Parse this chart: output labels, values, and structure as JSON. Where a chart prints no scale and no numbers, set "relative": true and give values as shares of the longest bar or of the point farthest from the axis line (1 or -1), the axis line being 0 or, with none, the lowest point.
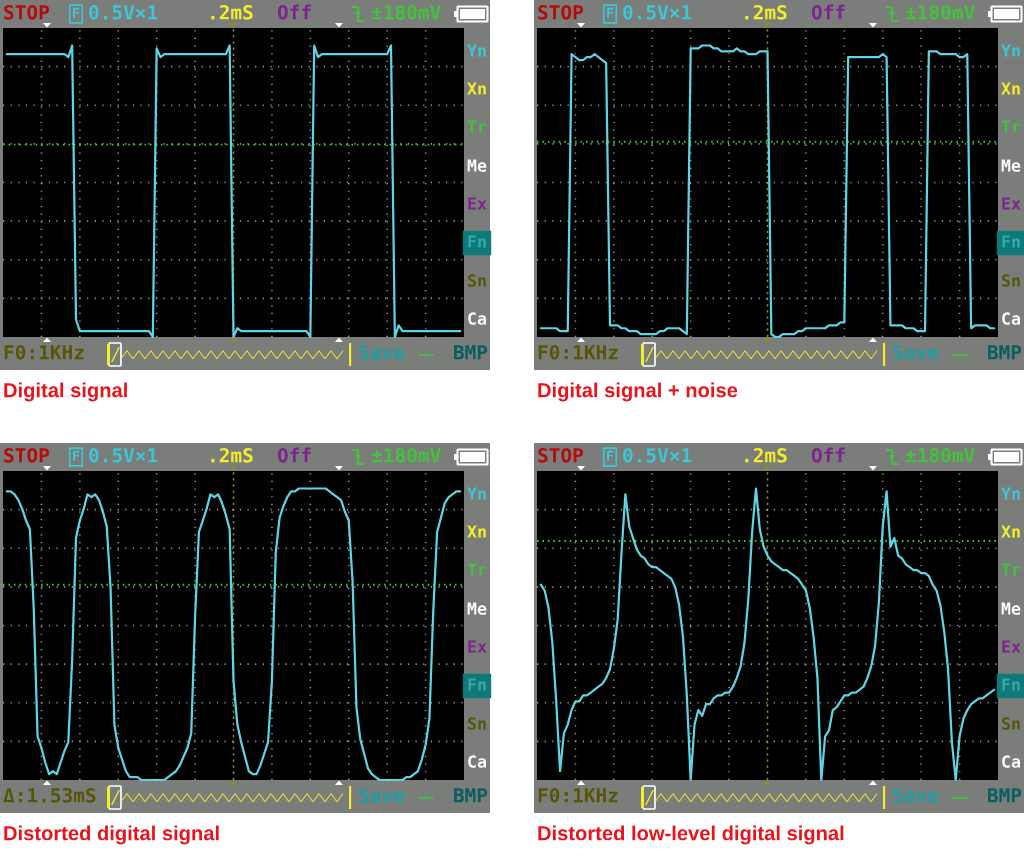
{
  "chart_data": [
    {
      "type": "line",
      "title": "Digital signal",
      "relative": true,
      "grid": true,
      "categories": [
        null,
        null,
        null,
        null,
        null,
        null,
        null,
        null,
        null,
        null,
        null,
        null,
        null,
        null,
        null,
        null,
        null,
        null,
        null,
        null,
        null,
        null,
        null,
        null,
        null,
        null,
        null,
        null,
        null,
        null,
        null,
        null,
        null,
        null,
        null,
        null,
        null,
        null,
        null,
        null,
        null,
        null,
        null,
        null,
        null,
        null,
        null,
        null,
        null,
        null,
        null,
        null,
        null,
        null,
        null,
        null,
        null,
        null,
        null,
        null,
        null,
        null,
        null,
        null,
        null,
        null,
        null,
        null,
        null,
        null,
        null,
        null,
        null,
        null,
        null,
        null,
        null,
        null,
        null,
        null,
        null,
        null,
        null,
        null,
        null,
        null,
        null,
        null,
        null,
        null,
        null,
        null,
        null,
        null,
        null,
        null,
        null,
        null,
        null,
        null,
        null,
        null,
        null,
        null,
        null,
        null,
        null,
        null,
        null,
        null,
        null,
        null,
        null,
        null,
        null,
        null,
        null,
        null,
        null,
        null,
        null
      ],
      "series": [
        {
          "color": "#5fd4e4",
          "values": [
            null,
            0.97,
            0.97,
            0.97,
            0.97,
            0.97,
            0.97,
            0.97,
            0.97,
            0.97,
            0.97,
            0.97,
            0.97,
            0.97,
            0.97,
            0.97,
            0.97,
            0.96,
            1.0,
            0.06,
            0.02,
            0.02,
            0.02,
            0.02,
            0.02,
            0.02,
            0.02,
            0.02,
            0.02,
            0.02,
            0.02,
            0.02,
            0.02,
            0.02,
            0.02,
            0.02,
            0.02,
            0.02,
            0.02,
            0.0,
            0.99,
            0.96,
            0.97,
            0.97,
            0.97,
            0.97,
            0.97,
            0.97,
            0.97,
            0.97,
            0.97,
            0.97,
            0.97,
            0.97,
            0.97,
            0.97,
            0.97,
            0.97,
            0.97,
            1.0,
            0.0,
            0.03,
            0.02,
            0.02,
            0.02,
            0.02,
            0.02,
            0.02,
            0.02,
            0.02,
            0.02,
            0.02,
            0.02,
            0.02,
            0.02,
            0.02,
            0.02,
            0.02,
            0.02,
            0.02,
            0.0,
            1.0,
            0.96,
            0.97,
            0.97,
            0.97,
            0.97,
            0.97,
            0.97,
            0.97,
            0.97,
            0.97,
            0.97,
            0.97,
            0.97,
            0.97,
            0.97,
            0.97,
            0.97,
            0.97,
            0.97,
            1.0,
            0.0,
            0.04,
            0.02,
            0.02,
            0.02,
            0.02,
            0.02,
            0.02,
            0.02,
            0.02,
            0.02,
            0.02,
            0.02,
            0.02,
            0.02,
            0.02,
            0.02,
            0.02,
            null
          ]
        }
      ],
      "ref_lines": [
        {
          "axis": "y",
          "value": 0.66,
          "color": "#2fd12f",
          "line_style": "dotted"
        }
      ],
      "annotations": [
        "STOP",
        "F",
        "0.5V×1",
        ".2mS",
        "Off",
        "±180mV",
        "Yn",
        "Xn",
        "Tr",
        "Me",
        "Ex",
        "Fn",
        "Sn",
        "Ca",
        "F0:1KHz",
        "Save",
        "BMP"
      ]
    },
    {
      "type": "line",
      "title": "Digital signal + noise",
      "relative": true,
      "grid": true,
      "categories": [
        null,
        null,
        null,
        null,
        null,
        null,
        null,
        null,
        null,
        null,
        null,
        null,
        null,
        null,
        null,
        null,
        null,
        null,
        null,
        null,
        null,
        null,
        null,
        null,
        null,
        null,
        null,
        null,
        null,
        null,
        null,
        null,
        null,
        null,
        null,
        null,
        null,
        null,
        null,
        null,
        null,
        null,
        null,
        null,
        null,
        null,
        null,
        null,
        null,
        null,
        null,
        null,
        null,
        null,
        null,
        null,
        null,
        null,
        null,
        null,
        null,
        null,
        null,
        null,
        null,
        null,
        null,
        null,
        null,
        null,
        null,
        null,
        null,
        null,
        null,
        null,
        null,
        null,
        null,
        null,
        null,
        null,
        null,
        null,
        null,
        null,
        null,
        null,
        null,
        null,
        null,
        null,
        null,
        null,
        null,
        null,
        null,
        null,
        null,
        null,
        null,
        null,
        null,
        null,
        null,
        null,
        null,
        null,
        null,
        null,
        null,
        null,
        null,
        null,
        null,
        null,
        null,
        null,
        null,
        null,
        null
      ],
      "series": [
        {
          "color": "#5fd4e4",
          "values": [
            null,
            0.03,
            0.03,
            0.03,
            0.03,
            0.03,
            0.02,
            0.02,
            0.02,
            0.97,
            0.96,
            0.95,
            0.95,
            0.96,
            0.96,
            0.97,
            0.96,
            0.95,
            0.94,
            0.04,
            0.04,
            0.04,
            0.03,
            0.03,
            0.02,
            0.02,
            0.02,
            0.01,
            0.01,
            0.01,
            0.01,
            0.01,
            0.02,
            0.02,
            0.03,
            0.03,
            0.03,
            0.03,
            0.02,
            0.01,
            0.99,
            0.99,
            0.99,
            1.0,
            1.0,
            1.0,
            0.99,
            0.99,
            0.98,
            0.98,
            0.98,
            0.98,
            0.99,
            0.98,
            0.98,
            0.97,
            0.97,
            0.97,
            0.98,
            0.98,
            0.98,
            0.01,
            0.0,
            0.0,
            0.01,
            0.01,
            0.01,
            0.01,
            0.02,
            0.02,
            0.03,
            0.03,
            0.03,
            0.03,
            0.03,
            0.03,
            0.04,
            0.04,
            0.04,
            0.05,
            0.05,
            0.96,
            0.96,
            0.96,
            0.96,
            0.96,
            0.96,
            0.96,
            0.96,
            0.96,
            0.97,
            0.96,
            0.04,
            0.04,
            0.04,
            0.04,
            0.03,
            0.03,
            0.03,
            0.02,
            0.02,
            0.02,
            0.98,
            0.98,
            0.98,
            0.97,
            0.97,
            0.97,
            0.97,
            0.97,
            0.96,
            0.96,
            0.97,
            0.03,
            0.04,
            0.04,
            0.04,
            0.04,
            0.03,
            0.03,
            null
          ]
        }
      ],
      "ref_lines": [
        {
          "axis": "y",
          "value": 0.67,
          "color": "#2fd12f",
          "line_style": "dotted"
        }
      ],
      "annotations": [
        "STOP",
        "F",
        "0.5V×1",
        ".2mS",
        "Off",
        "±180mV",
        "Yn",
        "Xn",
        "Tr",
        "Me",
        "Ex",
        "Fn",
        "Sn",
        "Ca",
        "F0:1KHz",
        "Save",
        "BMP"
      ]
    },
    {
      "type": "line",
      "title": "Distorted digital signal",
      "relative": true,
      "grid": true,
      "categories": [
        null,
        null,
        null,
        null,
        null,
        null,
        null,
        null,
        null,
        null,
        null,
        null,
        null,
        null,
        null,
        null,
        null,
        null,
        null,
        null,
        null,
        null,
        null,
        null,
        null,
        null,
        null,
        null,
        null,
        null,
        null,
        null,
        null,
        null,
        null,
        null,
        null,
        null,
        null,
        null,
        null,
        null,
        null,
        null,
        null,
        null,
        null,
        null,
        null,
        null,
        null,
        null,
        null,
        null,
        null,
        null,
        null,
        null,
        null,
        null,
        null,
        null,
        null,
        null,
        null,
        null,
        null,
        null,
        null,
        null,
        null,
        null,
        null,
        null,
        null,
        null,
        null,
        null,
        null,
        null,
        null,
        null,
        null,
        null,
        null,
        null,
        null,
        null,
        null,
        null,
        null,
        null,
        null,
        null,
        null,
        null,
        null,
        null,
        null,
        null,
        null,
        null,
        null,
        null,
        null,
        null,
        null,
        null,
        null,
        null,
        null,
        null,
        null,
        null,
        null,
        null,
        null,
        null,
        null,
        null,
        null
      ],
      "series": [
        {
          "color": "#5fd4e4",
          "values": [
            null,
            0.99,
            0.99,
            0.98,
            0.96,
            0.93,
            0.89,
            0.86,
            0.59,
            0.15,
            0.11,
            0.06,
            0.02,
            0.03,
            0.02,
            0.06,
            0.1,
            0.13,
            0.41,
            0.83,
            0.89,
            0.93,
            0.98,
            0.97,
            0.98,
            0.96,
            0.92,
            0.87,
            0.66,
            0.19,
            0.11,
            0.07,
            0.03,
            0.01,
            0.01,
            0.01,
            0.0,
            0.0,
            0.0,
            0.0,
            0.0,
            0.0,
            0.0,
            0.01,
            0.02,
            0.03,
            0.05,
            0.08,
            0.11,
            0.16,
            0.56,
            0.85,
            0.89,
            0.93,
            0.98,
            0.97,
            0.98,
            0.95,
            0.91,
            0.86,
            0.34,
            0.19,
            0.13,
            0.08,
            0.03,
            0.02,
            0.02,
            0.05,
            0.09,
            0.13,
            0.34,
            0.78,
            0.9,
            0.94,
            0.97,
            0.99,
            0.99,
            1.0,
            1.0,
            1.0,
            1.0,
            1.0,
            1.0,
            1.0,
            1.0,
            0.99,
            0.98,
            0.97,
            0.96,
            0.92,
            0.89,
            0.68,
            0.25,
            0.14,
            0.09,
            0.04,
            0.02,
            0.01,
            0.0,
            0.0,
            0.0,
            0.0,
            0.0,
            0.0,
            0.0,
            0.01,
            0.01,
            0.02,
            0.03,
            0.07,
            0.12,
            0.21,
            0.58,
            0.85,
            0.9,
            0.95,
            0.97,
            0.98,
            0.99,
            0.99,
            null
          ]
        }
      ],
      "ref_lines": [
        {
          "axis": "y",
          "value": 0.67,
          "color": "#2fd12f",
          "line_style": "dotted"
        }
      ],
      "annotations": [
        "STOP",
        "F",
        "0.5V×1",
        ".2mS",
        "Off",
        "±180mV",
        "Yn",
        "Xn",
        "Tr",
        "Me",
        "Ex",
        "Fn",
        "Sn",
        "Ca",
        "Δ:1.53mS",
        "Save",
        "BMP"
      ]
    },
    {
      "type": "line",
      "title": "Distorted low-level digital signal",
      "relative": true,
      "grid": true,
      "categories": [
        null,
        null,
        null,
        null,
        null,
        null,
        null,
        null,
        null,
        null,
        null,
        null,
        null,
        null,
        null,
        null,
        null,
        null,
        null,
        null,
        null,
        null,
        null,
        null,
        null,
        null,
        null,
        null,
        null,
        null,
        null,
        null,
        null,
        null,
        null,
        null,
        null,
        null,
        null,
        null,
        null,
        null,
        null,
        null,
        null,
        null,
        null,
        null,
        null,
        null,
        null,
        null,
        null,
        null,
        null,
        null,
        null,
        null,
        null,
        null,
        null,
        null,
        null,
        null,
        null,
        null,
        null,
        null,
        null,
        null,
        null,
        null,
        null,
        null,
        null,
        null,
        null,
        null,
        null,
        null,
        null,
        null,
        null,
        null,
        null,
        null,
        null,
        null,
        null,
        null,
        null,
        null,
        null,
        null,
        null,
        null,
        null,
        null,
        null,
        null,
        null,
        null,
        null,
        null,
        null,
        null,
        null,
        null,
        null,
        null,
        null,
        null,
        null,
        null,
        null,
        null,
        null,
        null,
        null,
        null,
        null
      ],
      "series": [
        {
          "color": "#5fd4e4",
          "values": [
            null,
            0.67,
            0.65,
            0.59,
            0.47,
            0.27,
            0.03,
            0.16,
            0.19,
            0.24,
            0.27,
            0.27,
            0.29,
            0.29,
            0.3,
            0.31,
            0.32,
            0.33,
            0.35,
            0.38,
            0.45,
            0.55,
            0.78,
            0.98,
            0.87,
            0.83,
            0.79,
            0.77,
            0.76,
            0.74,
            0.73,
            0.73,
            0.72,
            0.71,
            0.7,
            0.69,
            0.66,
            0.6,
            0.49,
            0.29,
            0.0,
            0.19,
            0.24,
            0.22,
            0.26,
            0.26,
            0.28,
            0.29,
            0.29,
            0.3,
            0.3,
            0.32,
            0.35,
            0.39,
            0.47,
            0.62,
            0.85,
            1.0,
            0.86,
            0.8,
            0.77,
            0.75,
            0.74,
            0.73,
            0.72,
            0.72,
            0.71,
            0.7,
            0.69,
            0.67,
            0.65,
            0.59,
            0.49,
            0.35,
            0.0,
            0.15,
            0.17,
            0.24,
            0.25,
            0.27,
            0.29,
            0.29,
            0.3,
            0.3,
            0.31,
            0.32,
            0.35,
            0.39,
            0.46,
            0.61,
            0.87,
            0.99,
            0.8,
            0.83,
            0.77,
            0.76,
            0.74,
            0.73,
            0.72,
            0.72,
            0.71,
            0.71,
            0.7,
            0.67,
            0.65,
            0.6,
            0.51,
            0.38,
            0.13,
            0.0,
            0.15,
            0.21,
            0.24,
            0.26,
            0.27,
            0.28,
            0.28,
            0.29,
            0.3,
            0.31,
            null
          ]
        }
      ],
      "ref_lines": [
        {
          "axis": "y",
          "value": 0.82,
          "color": "#2fd12f",
          "line_style": "dotted"
        }
      ],
      "annotations": [
        "STOP",
        "F",
        "0.5V×1",
        ".2mS",
        "Off",
        "±180mV",
        "Yn",
        "Xn",
        "Tr",
        "Me",
        "Ex",
        "Fn",
        "Sn",
        "Ca",
        "F0:1KHz",
        "Save",
        "BMP"
      ]
    }
  ]
}
